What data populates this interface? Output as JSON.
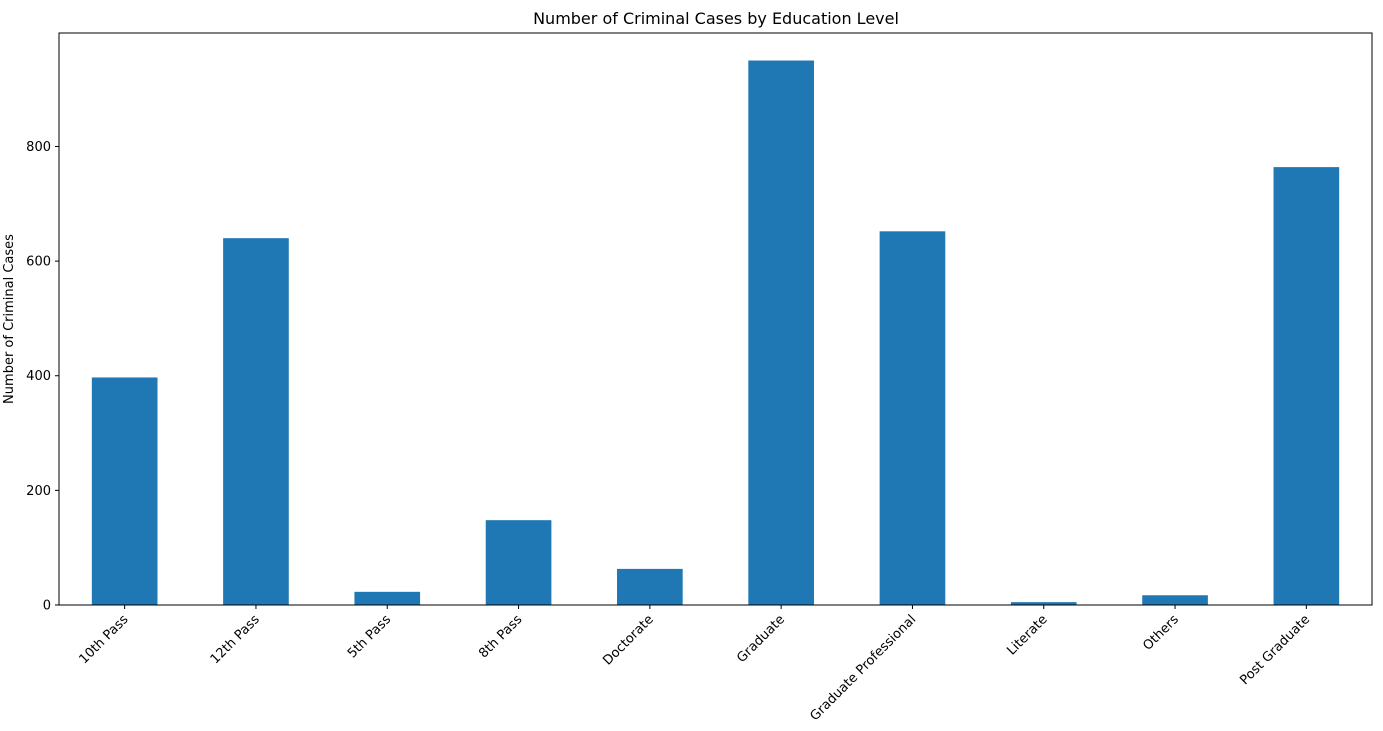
{
  "chart_data": {
    "type": "bar",
    "title": "Number of Criminal Cases by Education Level",
    "xlabel": "",
    "ylabel": "Number of Criminal Cases",
    "categories": [
      "10th Pass",
      "12th Pass",
      "5th Pass",
      "8th Pass",
      "Doctorate",
      "Graduate",
      "Graduate Professional",
      "Literate",
      "Others",
      "Post Graduate"
    ],
    "values": [
      397,
      640,
      23,
      148,
      63,
      950,
      652,
      5,
      17,
      764
    ],
    "ylim": [
      0,
      998
    ],
    "yticks": [
      0,
      200,
      400,
      600,
      800
    ],
    "bar_color": "#1f77b4",
    "grid": false,
    "legend": "none"
  }
}
